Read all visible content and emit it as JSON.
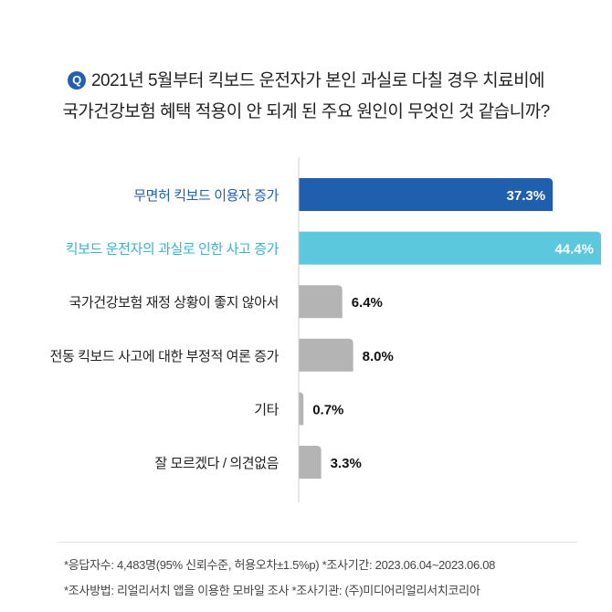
{
  "question": {
    "badge": "Q",
    "line1": "2021년 5월부터 킥보드 운전자가 본인 과실로 다칠 경우 치료비에",
    "line2": "국가건강보험 혜택 적용이 안 되게 된 주요 원인이 무엇인 것 같습니까?"
  },
  "chart_data": {
    "type": "bar",
    "orientation": "horizontal",
    "categories": [
      "무면허 킥보드 이용자 증가",
      "킥보드 운전자의 과실로 인한 사고 증가",
      "국가건강보험 재정 상황이 좋지 않아서",
      "전동 킥보드 사고에 대한 부정적 여론 증가",
      "기타",
      "잘 모르겠다 / 의견없음"
    ],
    "values": [
      37.3,
      44.4,
      6.4,
      8.0,
      0.7,
      3.3
    ],
    "value_labels": [
      "37.3%",
      "44.4%",
      "6.4%",
      "8.0%",
      "0.7%",
      "3.3%"
    ],
    "colors": [
      "#1f5fad",
      "#5cc8dd",
      "#b4b4b4",
      "#b4b4b4",
      "#b4b4b4",
      "#b4b4b4"
    ],
    "label_colors": [
      "#1f5fad",
      "#3ab3cc",
      "#222222",
      "#222222",
      "#222222",
      "#222222"
    ],
    "unit": "%",
    "xlim": [
      0,
      44.4
    ]
  },
  "notes": {
    "line1": "*응답자수: 4,483명(95% 신뢰수준, 허용오차±1.5%p)  *조사기간: 2023.06.04~2023.06.08",
    "line2": "*조사방법: 리얼리서치 앱을 이용한 모바일 조사  *조사기관: (주)미디어리얼리서치코리아"
  }
}
